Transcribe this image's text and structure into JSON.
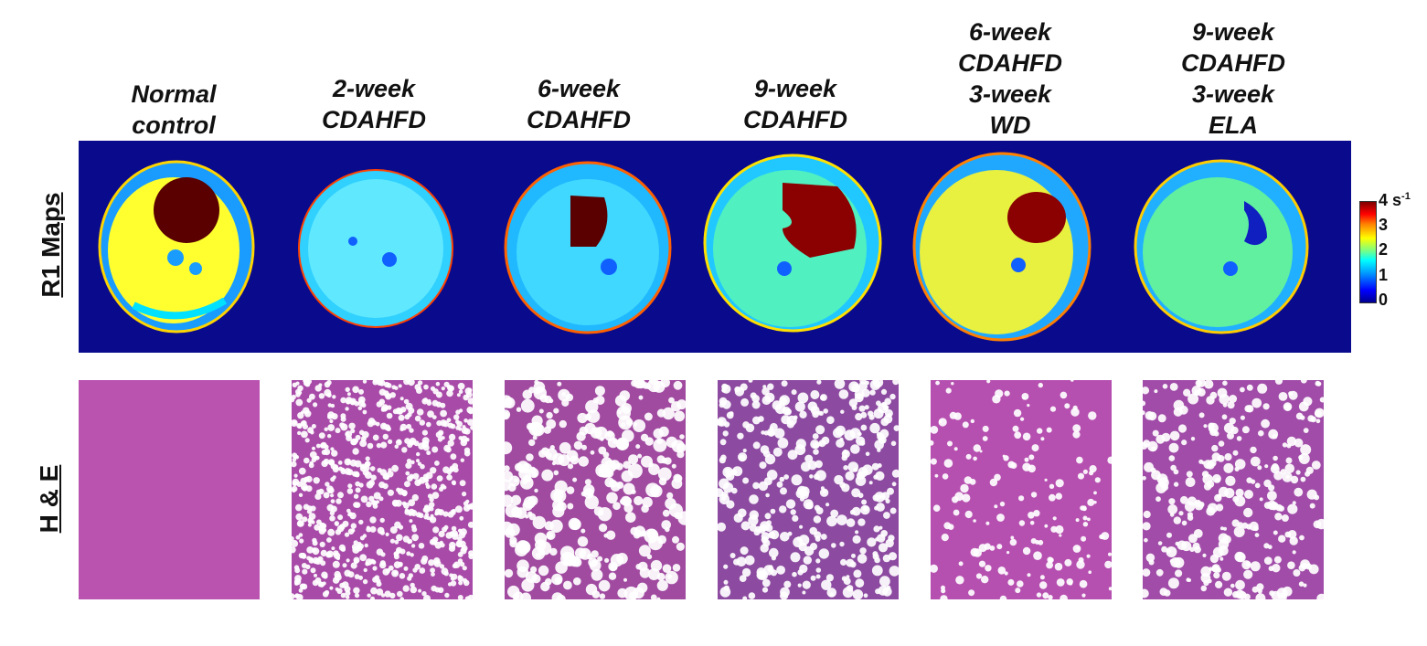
{
  "columns": [
    {
      "lines": [
        "Normal",
        "control"
      ]
    },
    {
      "lines": [
        "2-week",
        "CDAHFD"
      ]
    },
    {
      "lines": [
        "6-week",
        "CDAHFD"
      ]
    },
    {
      "lines": [
        "9-week",
        "CDAHFD"
      ]
    },
    {
      "lines": [
        "6-week",
        "CDAHFD",
        "3-week",
        "WD"
      ]
    },
    {
      "lines": [
        "9-week",
        "CDAHFD",
        "3-week",
        "ELA"
      ]
    }
  ],
  "rows": {
    "r1_label": "R1 Maps",
    "he_label": "H & E"
  },
  "colorbar": {
    "ticks": [
      "4",
      "3",
      "2",
      "1",
      "0"
    ],
    "unit_base": "s",
    "unit_exp": "-1"
  }
}
